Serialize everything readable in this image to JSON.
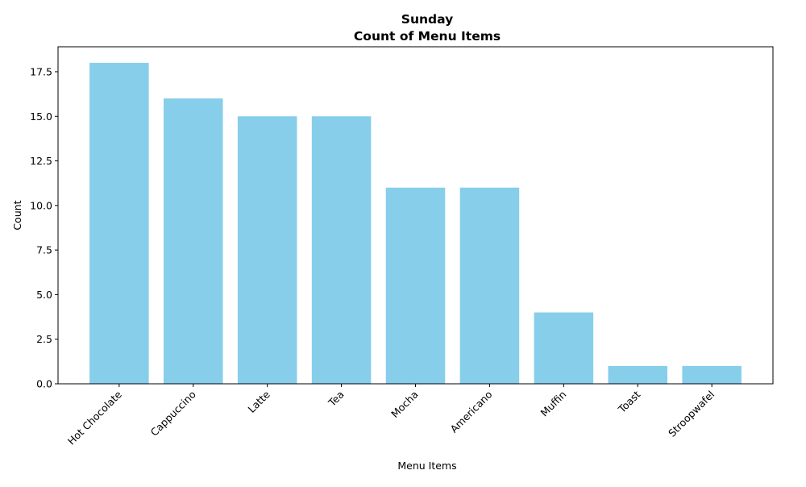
{
  "chart_data": {
    "type": "bar",
    "title": "Sunday",
    "subtitle": "Count of Menu Items",
    "xlabel": "Menu Items",
    "ylabel": "Count",
    "categories": [
      "Hot Chocolate",
      "Cappuccino",
      "Latte",
      "Tea",
      "Mocha",
      "Americano",
      "Muffin",
      "Toast",
      "Stroopwafel"
    ],
    "values": [
      18,
      16,
      15,
      15,
      11,
      11,
      4,
      1,
      1
    ],
    "ylim": [
      0,
      18.9
    ],
    "yticks": [
      0.0,
      2.5,
      5.0,
      7.5,
      10.0,
      12.5,
      15.0,
      17.5
    ],
    "ytick_labels": [
      "0.0",
      "2.5",
      "5.0",
      "7.5",
      "10.0",
      "12.5",
      "15.0",
      "17.5"
    ],
    "bar_color": "#87CEEB",
    "grid": false,
    "legend": "none"
  }
}
